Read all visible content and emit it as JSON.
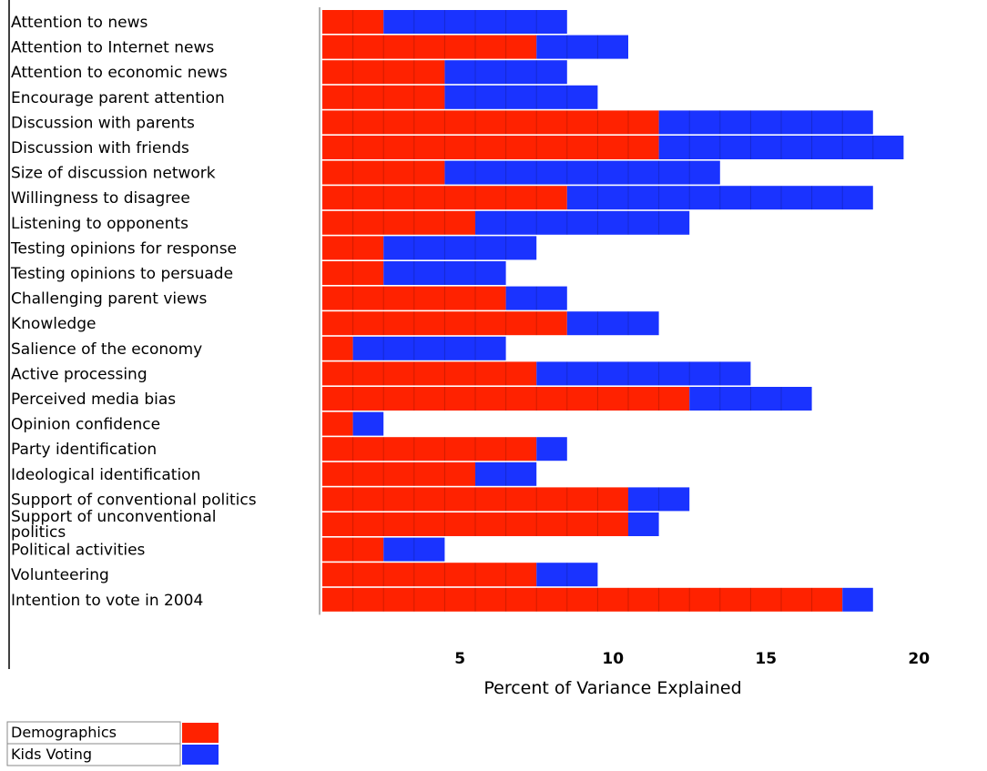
{
  "chart_data": {
    "type": "bar",
    "orientation": "horizontal",
    "stacked": true,
    "categories": [
      "Attention to news",
      "Attention to Internet news",
      "Attention to economic news",
      "Encourage parent attention",
      "Discussion with parents",
      "Discussion with friends",
      "Size of discussion network",
      "Willingness to disagree",
      "Listening to opponents",
      "Testing opinions for response",
      "Testing opinions to persuade",
      "Challenging parent views",
      "Knowledge",
      "Salience of the economy",
      "Active processing",
      "Perceived media bias",
      "Opinion confidence",
      "Party identification",
      "Ideological identification",
      "Support of conventional politics",
      "Support of unconventional politics",
      "Political activities",
      "Volunteering",
      "Intention to vote in 2004"
    ],
    "series": [
      {
        "name": "Demographics",
        "color": "#ff2200",
        "values": [
          2,
          7,
          4,
          4,
          11,
          11,
          4,
          8,
          5,
          2,
          2,
          6,
          8,
          1,
          7,
          12,
          1,
          7,
          5,
          10,
          10,
          2,
          7,
          17
        ]
      },
      {
        "name": "Kids Voting",
        "color": "#1a33ff",
        "values": [
          6,
          3,
          4,
          5,
          7,
          8,
          9,
          10,
          7,
          5,
          4,
          2,
          3,
          5,
          7,
          4,
          1,
          1,
          2,
          2,
          1,
          2,
          2,
          1
        ]
      }
    ],
    "xlabel": "Percent of Variance Explained",
    "xticks": [
      "5",
      "10",
      "15",
      "20"
    ],
    "xlim": [
      0,
      20
    ],
    "grid": false,
    "legend_position": "bottom-left"
  }
}
